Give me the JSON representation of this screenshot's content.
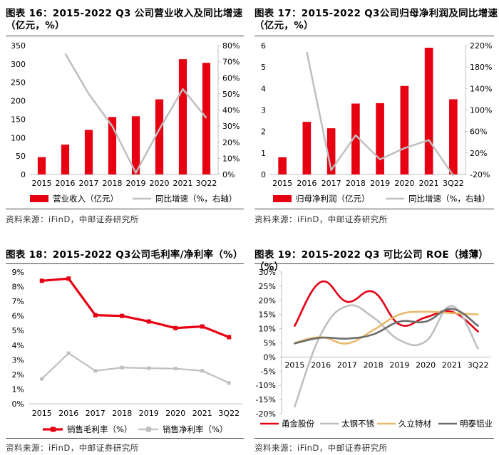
{
  "panels": {
    "p16": {
      "title_line1": "图表 16：2015-2022 Q3 公司营业收入及同比增速",
      "title_line2": "（亿元，%）",
      "source": "资料来源：iFinD，中邮证券研究所"
    },
    "p17": {
      "title_line1": "图表 17：2015-2022 Q3公司归母净利润及同比增速",
      "title_line2": "（亿元，%）",
      "source": "资料来源：iFinD，中邮证券研究所"
    },
    "p18": {
      "title_line1": "图表 18：2015-2022 Q3公司毛利率/净利率（%）",
      "source": "资料来源：iFinD，中邮证券研究所"
    },
    "p19": {
      "title_line1": "图表 19：2015-2022 Q3 可比公司 ROE（摊薄）（%）",
      "source": "资料来源：iFinD，中邮证券研究所"
    }
  },
  "colors": {
    "red": "#e60012",
    "gray": "#bfbfbf",
    "orange": "#e8b96a",
    "darkgray": "#6d6d6d"
  },
  "chart_data": [
    {
      "id": "revenue",
      "type": "bar+line",
      "categories": [
        "2015",
        "2016",
        "2017",
        "2018",
        "2019",
        "2020",
        "2021",
        "3Q22"
      ],
      "bar_series": {
        "name": "营业收入（亿元）",
        "values": [
          47,
          81,
          121,
          156,
          158,
          204,
          313,
          303
        ]
      },
      "line_series": {
        "name": "同比增速（%，右轴）",
        "values": [
          null,
          75,
          50,
          30,
          1,
          28,
          53,
          35
        ]
      },
      "y_left": {
        "min": 0,
        "max": 350,
        "step": 50,
        "ticks": [
          "0",
          "50",
          "100",
          "150",
          "200",
          "250",
          "300",
          "350"
        ]
      },
      "y_right": {
        "min": 0,
        "max": 80,
        "step": 10,
        "ticks": [
          "0%",
          "10%",
          "20%",
          "30%",
          "40%",
          "50%",
          "60%",
          "70%",
          "80%"
        ]
      }
    },
    {
      "id": "net_profit",
      "type": "bar+line",
      "categories": [
        "2015",
        "2016",
        "2017",
        "2018",
        "2019",
        "2020",
        "2021",
        "3Q22"
      ],
      "bar_series": {
        "name": "归母净利润（亿元）",
        "values": [
          0.8,
          2.45,
          2.15,
          3.3,
          3.32,
          4.12,
          5.9,
          3.5
        ]
      },
      "line_series": {
        "name": "同比增速（%，右轴）",
        "values": [
          null,
          208,
          -12,
          53,
          8,
          29,
          44,
          -22
        ]
      },
      "y_left": {
        "min": 0,
        "max": 6,
        "step": 1,
        "ticks": [
          "0",
          "1",
          "2",
          "3",
          "4",
          "5",
          "6"
        ]
      },
      "y_right": {
        "min": -20,
        "max": 220,
        "step": 40,
        "ticks": [
          "-20%",
          "20%",
          "60%",
          "100%",
          "140%",
          "180%",
          "220%"
        ]
      }
    },
    {
      "id": "margins",
      "type": "line",
      "categories": [
        "2015",
        "2016",
        "2017",
        "2018",
        "2019",
        "2020",
        "2021",
        "3Q22"
      ],
      "series": [
        {
          "name": "销售毛利率（%）",
          "values": [
            8.4,
            8.55,
            6.05,
            6.0,
            5.62,
            5.17,
            5.28,
            4.55
          ]
        },
        {
          "name": "销售净利率（%）",
          "values": [
            1.7,
            3.45,
            2.25,
            2.47,
            2.43,
            2.4,
            2.25,
            1.42
          ]
        }
      ],
      "y": {
        "min": 0,
        "max": 9,
        "step": 1,
        "ticks": [
          "0%",
          "1%",
          "2%",
          "3%",
          "4%",
          "5%",
          "6%",
          "7%",
          "8%",
          "9%"
        ]
      }
    },
    {
      "id": "roe",
      "type": "line",
      "categories": [
        "2015",
        "2016",
        "2017",
        "2018",
        "2019",
        "2020",
        "2021",
        "3Q22"
      ],
      "series": [
        {
          "name": "甬金股份",
          "values": [
            11,
            26.5,
            19.5,
            23,
            11.5,
            14,
            16,
            9
          ]
        },
        {
          "name": "太钢不锈",
          "values": [
            -17.5,
            8,
            18,
            14,
            6,
            5.5,
            18,
            3
          ]
        },
        {
          "name": "久立特材",
          "values": [
            5,
            7,
            4.8,
            9.5,
            15,
            16,
            15.5,
            15
          ]
        },
        {
          "name": "明泰铝业",
          "values": [
            4.8,
            6.8,
            6.5,
            8,
            12.5,
            12.5,
            17,
            11
          ]
        }
      ],
      "y": {
        "min": -20,
        "max": 30,
        "step": 5,
        "ticks": [
          "-20%",
          "-15%",
          "-10%",
          "-5%",
          "0%",
          "5%",
          "10%",
          "15%",
          "20%",
          "25%",
          "30%"
        ]
      }
    }
  ]
}
